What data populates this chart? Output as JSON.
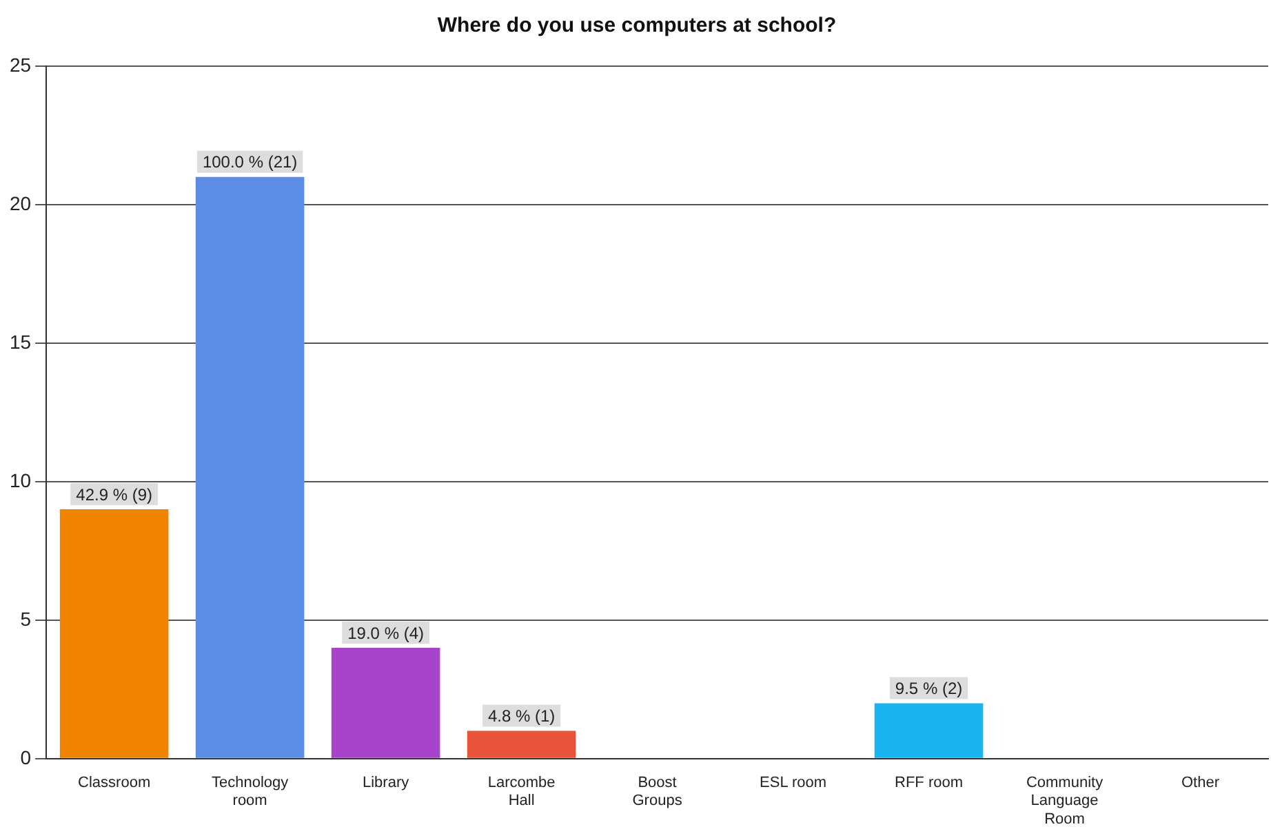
{
  "chart_data": {
    "type": "bar",
    "title": "Where do you use computers at school?",
    "categories": [
      "Classroom",
      "Technology room",
      "Library",
      "Larcombe Hall",
      "Boost Groups",
      "ESL room",
      "RFF room",
      "Community Language Room",
      "Other"
    ],
    "values": [
      9,
      21,
      4,
      1,
      0,
      0,
      2,
      0,
      0
    ],
    "colors": [
      "#f08400",
      "#5b8de6",
      "#a843cc",
      "#e8533a",
      "#777777",
      "#777777",
      "#1ab4f0",
      "#777777",
      "#777777"
    ],
    "value_labels": [
      "42.9 % (9)",
      "100.0 % (21)",
      "19.0 % (4)",
      "4.8 % (1)",
      null,
      null,
      "9.5 % (2)",
      null,
      null
    ],
    "ylim": [
      0,
      25
    ],
    "yticks": [
      0,
      5,
      10,
      15,
      20,
      25
    ],
    "grid": "y",
    "legend": false
  }
}
